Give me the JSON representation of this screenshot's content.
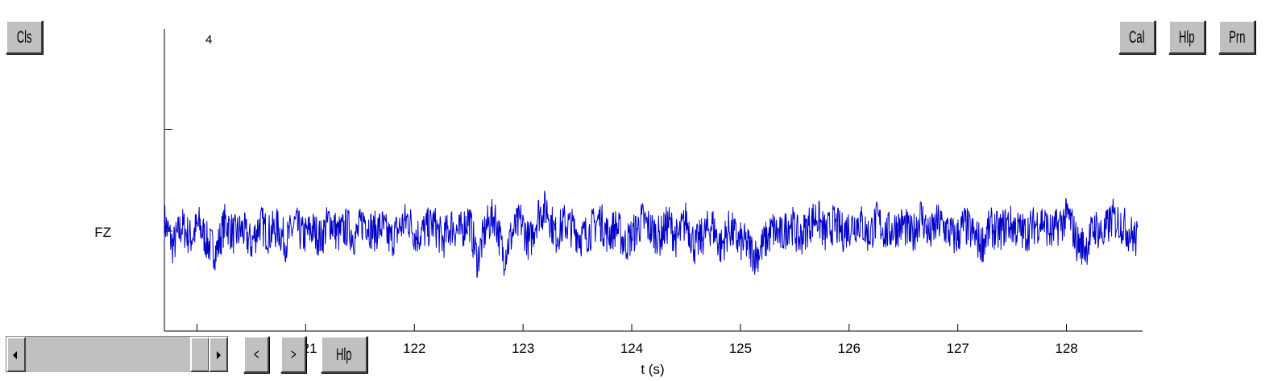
{
  "buttons": {
    "close": "Cls",
    "calibrate": "Cal",
    "help_top": "Hlp",
    "print": "Prn",
    "help_bottom": "Hlp",
    "prev": "<",
    "next": ">"
  },
  "colors": {
    "trace": "#0000c8",
    "axis": "#000000",
    "button_face": "#c0c0c0"
  },
  "icons": {
    "scroll_left": "left-arrow-icon",
    "scroll_right": "right-arrow-icon"
  },
  "chart_data": {
    "type": "line",
    "title": "",
    "xlabel": "t (s)",
    "ylabel": "",
    "channel_label": "FZ",
    "scale_label": "4",
    "xlim": [
      119.7,
      128.7
    ],
    "ylim": [
      -10,
      10
    ],
    "x_ticks": [
      120,
      121,
      122,
      123,
      124,
      125,
      126,
      127,
      128
    ],
    "x_tick_labels": [
      "",
      "121",
      "122",
      "123",
      "124",
      "125",
      "126",
      "127",
      "128"
    ],
    "y_ticks": [
      0,
      5
    ],
    "grid": false,
    "series": [
      {
        "x": [
          119.7,
          119.78,
          119.86,
          119.94,
          120.02,
          120.1,
          120.18,
          120.26,
          120.34,
          120.42,
          120.5,
          120.58,
          120.66,
          120.74,
          120.82,
          120.9,
          120.98,
          121.06,
          121.14,
          121.22,
          121.3,
          121.38,
          121.46,
          121.54,
          121.62,
          121.7,
          121.78,
          121.86,
          121.94,
          122.02,
          122.1,
          122.18,
          122.26,
          122.34,
          122.42,
          122.5,
          122.58,
          122.66,
          122.74,
          122.82,
          122.9,
          122.98,
          123.06,
          123.14,
          123.22,
          123.3,
          123.38,
          123.46,
          123.54,
          123.62,
          123.7,
          123.78,
          123.86,
          123.94,
          124.02,
          124.1,
          124.18,
          124.26,
          124.34,
          124.42,
          124.5,
          124.58,
          124.66,
          124.74,
          124.82,
          124.9,
          124.98,
          125.06,
          125.14,
          125.22,
          125.3,
          125.38,
          125.46,
          125.54,
          125.62,
          125.7,
          125.78,
          125.86,
          125.94,
          126.02,
          126.1,
          126.18,
          126.26,
          126.34,
          126.42,
          126.5,
          126.58,
          126.66,
          126.74,
          126.82,
          126.9,
          126.98,
          127.06,
          127.14,
          127.22,
          127.3,
          127.38,
          127.46,
          127.54,
          127.62,
          127.7,
          127.78,
          127.86,
          127.94,
          128.02,
          128.1,
          128.18,
          128.26,
          128.34,
          128.42,
          128.5,
          128.58,
          128.66
        ],
        "values": [
          1.5,
          -2.2,
          0.8,
          -1.0,
          0.9,
          -1.8,
          -2.9,
          1.4,
          -0.6,
          0.2,
          -1.9,
          1.2,
          -0.4,
          0.5,
          -1.6,
          1.0,
          -0.8,
          0.3,
          -1.1,
          1.7,
          -0.5,
          0.6,
          -0.9,
          1.9,
          -0.2,
          0.7,
          -1.3,
          0.4,
          1.8,
          -0.7,
          0.2,
          1.1,
          -1.4,
          0.9,
          -0.3,
          2.0,
          -4.2,
          0.6,
          2.3,
          -3.7,
          -0.4,
          1.5,
          -1.8,
          2.6,
          3.3,
          -0.6,
          1.2,
          0.4,
          -0.9,
          0.1,
          1.8,
          -0.5,
          0.7,
          -1.9,
          -0.3,
          1.6,
          0.2,
          -0.8,
          1.2,
          -1.3,
          1.7,
          -2.2,
          -0.6,
          1.0,
          -2.4,
          0.5,
          -1.5,
          -1.9,
          -3.6,
          -1.7,
          0.2,
          -0.8,
          1.5,
          -1.2,
          0.7,
          2.3,
          -0.4,
          1.1,
          -0.2,
          0.9,
          1.4,
          -0.6,
          1.6,
          -0.3,
          0.5,
          0.9,
          -0.8,
          2.4,
          -0.7,
          1.3,
          0.2,
          -1.1,
          1.0,
          -0.5,
          -1.9,
          0.6,
          -0.2,
          1.2,
          0.4,
          -0.3,
          0.8,
          1.6,
          -0.4,
          1.1,
          2.3,
          -1.8,
          -2.3,
          0.7,
          -0.6,
          1.9,
          1.2,
          -0.2,
          -1.5
        ]
      }
    ]
  }
}
